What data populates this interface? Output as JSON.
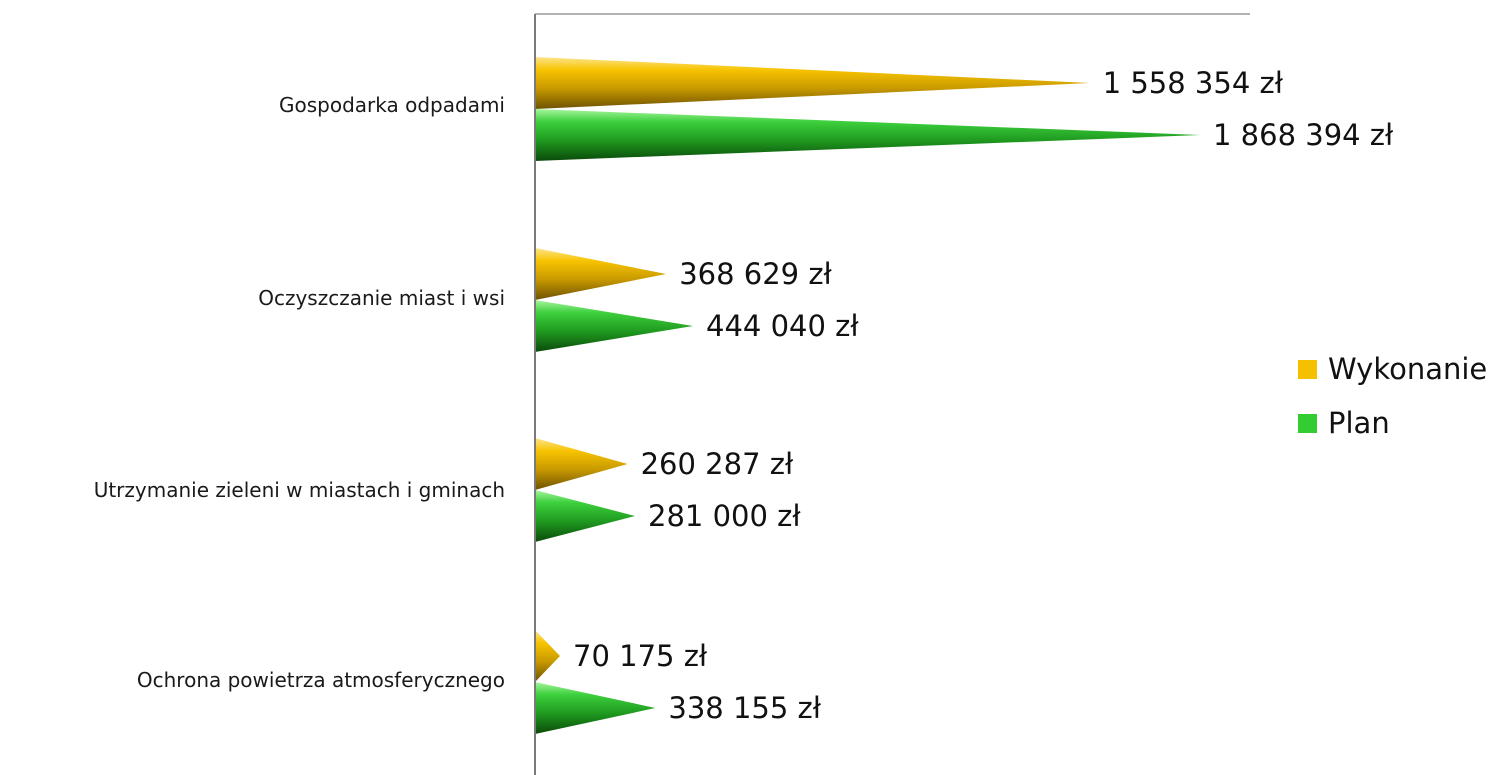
{
  "chart_data": {
    "type": "bar",
    "orientation": "horizontal",
    "bar_shape": "cone",
    "categories": [
      "Gospodarka odpadami",
      "Oczyszczanie miast i wsi",
      "Utrzymanie zieleni w miastach i gminach",
      "Ochrona powietrza atmosferycznego"
    ],
    "series": [
      {
        "name": "Wykonanie",
        "color": "#f5c000",
        "values": [
          1558354,
          368629,
          260287,
          70175
        ],
        "labels": [
          "1 558 354 zł",
          "368 629 zł",
          "260 287 zł",
          "70 175 zł"
        ]
      },
      {
        "name": "Plan",
        "color": "#33cc33",
        "values": [
          1868394,
          444040,
          281000,
          338155
        ],
        "labels": [
          "1 868 394 zł",
          "444 040 zł",
          "281 000 zł",
          "338 155 zł"
        ]
      }
    ],
    "xlim": [
      0,
      2000000
    ],
    "grid": false,
    "legend_position": "right"
  }
}
